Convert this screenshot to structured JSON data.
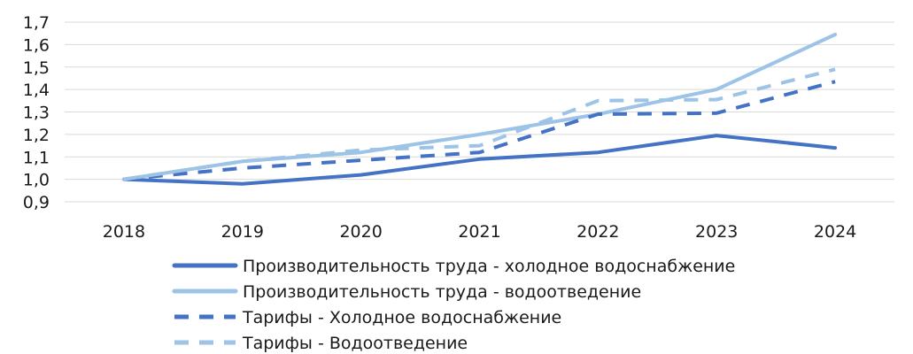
{
  "chart_data": {
    "type": "line",
    "x": [
      "2018",
      "2019",
      "2020",
      "2021",
      "2022",
      "2023",
      "2024"
    ],
    "ylim": [
      0.9,
      1.7
    ],
    "yticks": [
      "0,9",
      "1,0",
      "1,1",
      "1,2",
      "1,3",
      "1,4",
      "1,5",
      "1,6",
      "1,7"
    ],
    "grid": true,
    "legend_position": "bottom",
    "series": [
      {
        "name": "Производительность труда - холодное водоснабжение",
        "values": [
          1.0,
          0.98,
          1.02,
          1.09,
          1.12,
          1.195,
          1.14
        ],
        "color": "#4472c4",
        "dash": false
      },
      {
        "name": "Производительность труда - водоотведение",
        "values": [
          1.0,
          1.08,
          1.12,
          1.2,
          1.29,
          1.4,
          1.645
        ],
        "color": "#9dc3e6",
        "dash": false
      },
      {
        "name": "Тарифы - Холодное водоснабжение",
        "values": [
          1.0,
          1.05,
          1.085,
          1.12,
          1.29,
          1.295,
          1.435
        ],
        "color": "#4472c4",
        "dash": true
      },
      {
        "name": "Тарифы - Водоотведение",
        "values": [
          1.0,
          1.08,
          1.13,
          1.15,
          1.35,
          1.355,
          1.49
        ],
        "color": "#9dc3e6",
        "dash": true
      }
    ]
  }
}
